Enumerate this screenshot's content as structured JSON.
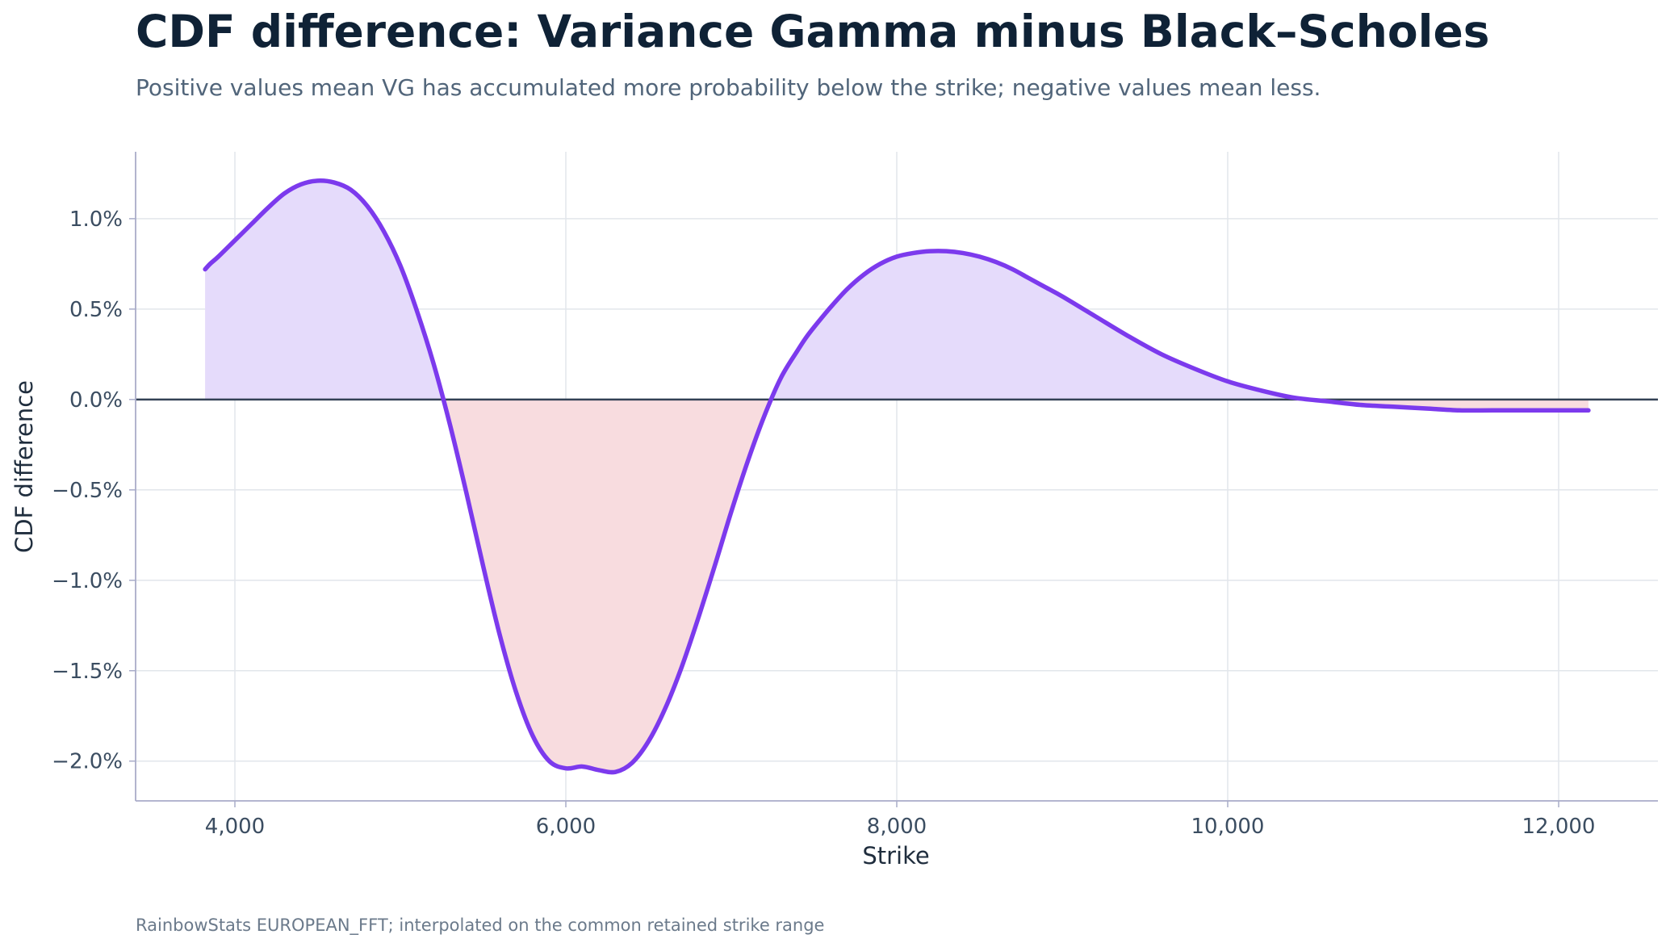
{
  "chart_data": {
    "type": "area",
    "title": "CDF difference: Variance Gamma minus Black–Scholes",
    "subtitle": "Positive values mean VG has accumulated more probability below the strike; negative values mean less.",
    "xlabel": "Strike",
    "ylabel": "CDF difference",
    "footnote": "RainbowStats EUROPEAN_FFT; interpolated on the common retained strike range",
    "xlim": [
      3400,
      12600
    ],
    "ylim": [
      -0.0222,
      0.0137
    ],
    "x_ticks": [
      {
        "value": 4000,
        "label": "4,000"
      },
      {
        "value": 6000,
        "label": "6,000"
      },
      {
        "value": 8000,
        "label": "8,000"
      },
      {
        "value": 10000,
        "label": "10,000"
      },
      {
        "value": 12000,
        "label": "12,000"
      }
    ],
    "y_ticks": [
      {
        "value": 0.01,
        "label": "1.0%"
      },
      {
        "value": 0.005,
        "label": "0.5%"
      },
      {
        "value": 0.0,
        "label": "0.0%"
      },
      {
        "value": -0.005,
        "label": "−0.5%"
      },
      {
        "value": -0.01,
        "label": "−1.0%"
      },
      {
        "value": -0.015,
        "label": "−1.5%"
      },
      {
        "value": -0.02,
        "label": "−2.0%"
      }
    ],
    "grid": true,
    "zero_line": true,
    "legend": "none",
    "colors": {
      "line": "#7c3aed",
      "positive_fill": "#e5dbfb",
      "negative_fill": "#f8dcdf",
      "zero_line": "#334155",
      "grid": "#e2e6eb",
      "axis": "#a9acc9",
      "title": "#0f2236",
      "subtitle": "#51657a",
      "tick_label": "#3b4d61",
      "axis_label": "#1f2d3d",
      "footnote": "#6b7a8b"
    },
    "series": [
      {
        "x": [
          3820,
          3850,
          3900,
          4000,
          4100,
          4200,
          4300,
          4400,
          4500,
          4600,
          4700,
          4800,
          4900,
          5000,
          5100,
          5200,
          5300,
          5400,
          5500,
          5600,
          5700,
          5800,
          5900,
          6000,
          6100,
          6200,
          6300,
          6400,
          6500,
          6600,
          6700,
          6800,
          6900,
          7000,
          7100,
          7200,
          7300,
          7400,
          7450,
          7500,
          7600,
          7700,
          7800,
          7900,
          8000,
          8100,
          8200,
          8300,
          8400,
          8500,
          8600,
          8700,
          8800,
          8900,
          9000,
          9200,
          9400,
          9600,
          9800,
          10000,
          10200,
          10400,
          10600,
          10800,
          11000,
          11200,
          11400,
          11600,
          11800,
          12000,
          12100,
          12180
        ],
        "y": [
          0.0072,
          0.0075,
          0.0079,
          0.0088,
          0.0097,
          0.0106,
          0.0114,
          0.0119,
          0.0121,
          0.012,
          0.0116,
          0.0107,
          0.0093,
          0.0074,
          0.0049,
          0.002,
          -0.0014,
          -0.0052,
          -0.0092,
          -0.013,
          -0.0162,
          -0.0186,
          -0.02,
          -0.0204,
          -0.0203,
          -0.0205,
          -0.0206,
          -0.0201,
          -0.0189,
          -0.0171,
          -0.0148,
          -0.0121,
          -0.0092,
          -0.0062,
          -0.0034,
          -0.0009,
          0.0012,
          0.0027,
          0.0034,
          0.004,
          0.0051,
          0.0061,
          0.0069,
          0.0075,
          0.0079,
          0.0081,
          0.0082,
          0.0082,
          0.0081,
          0.0079,
          0.0076,
          0.0072,
          0.0067,
          0.0062,
          0.0057,
          0.0046,
          0.0035,
          0.0025,
          0.0017,
          0.001,
          0.0005,
          0.0001,
          -0.0001,
          -0.0003,
          -0.0004,
          -0.0005,
          -0.0006,
          -0.0006,
          -0.0006,
          -0.0006,
          -0.0006,
          -0.0006
        ]
      }
    ]
  }
}
